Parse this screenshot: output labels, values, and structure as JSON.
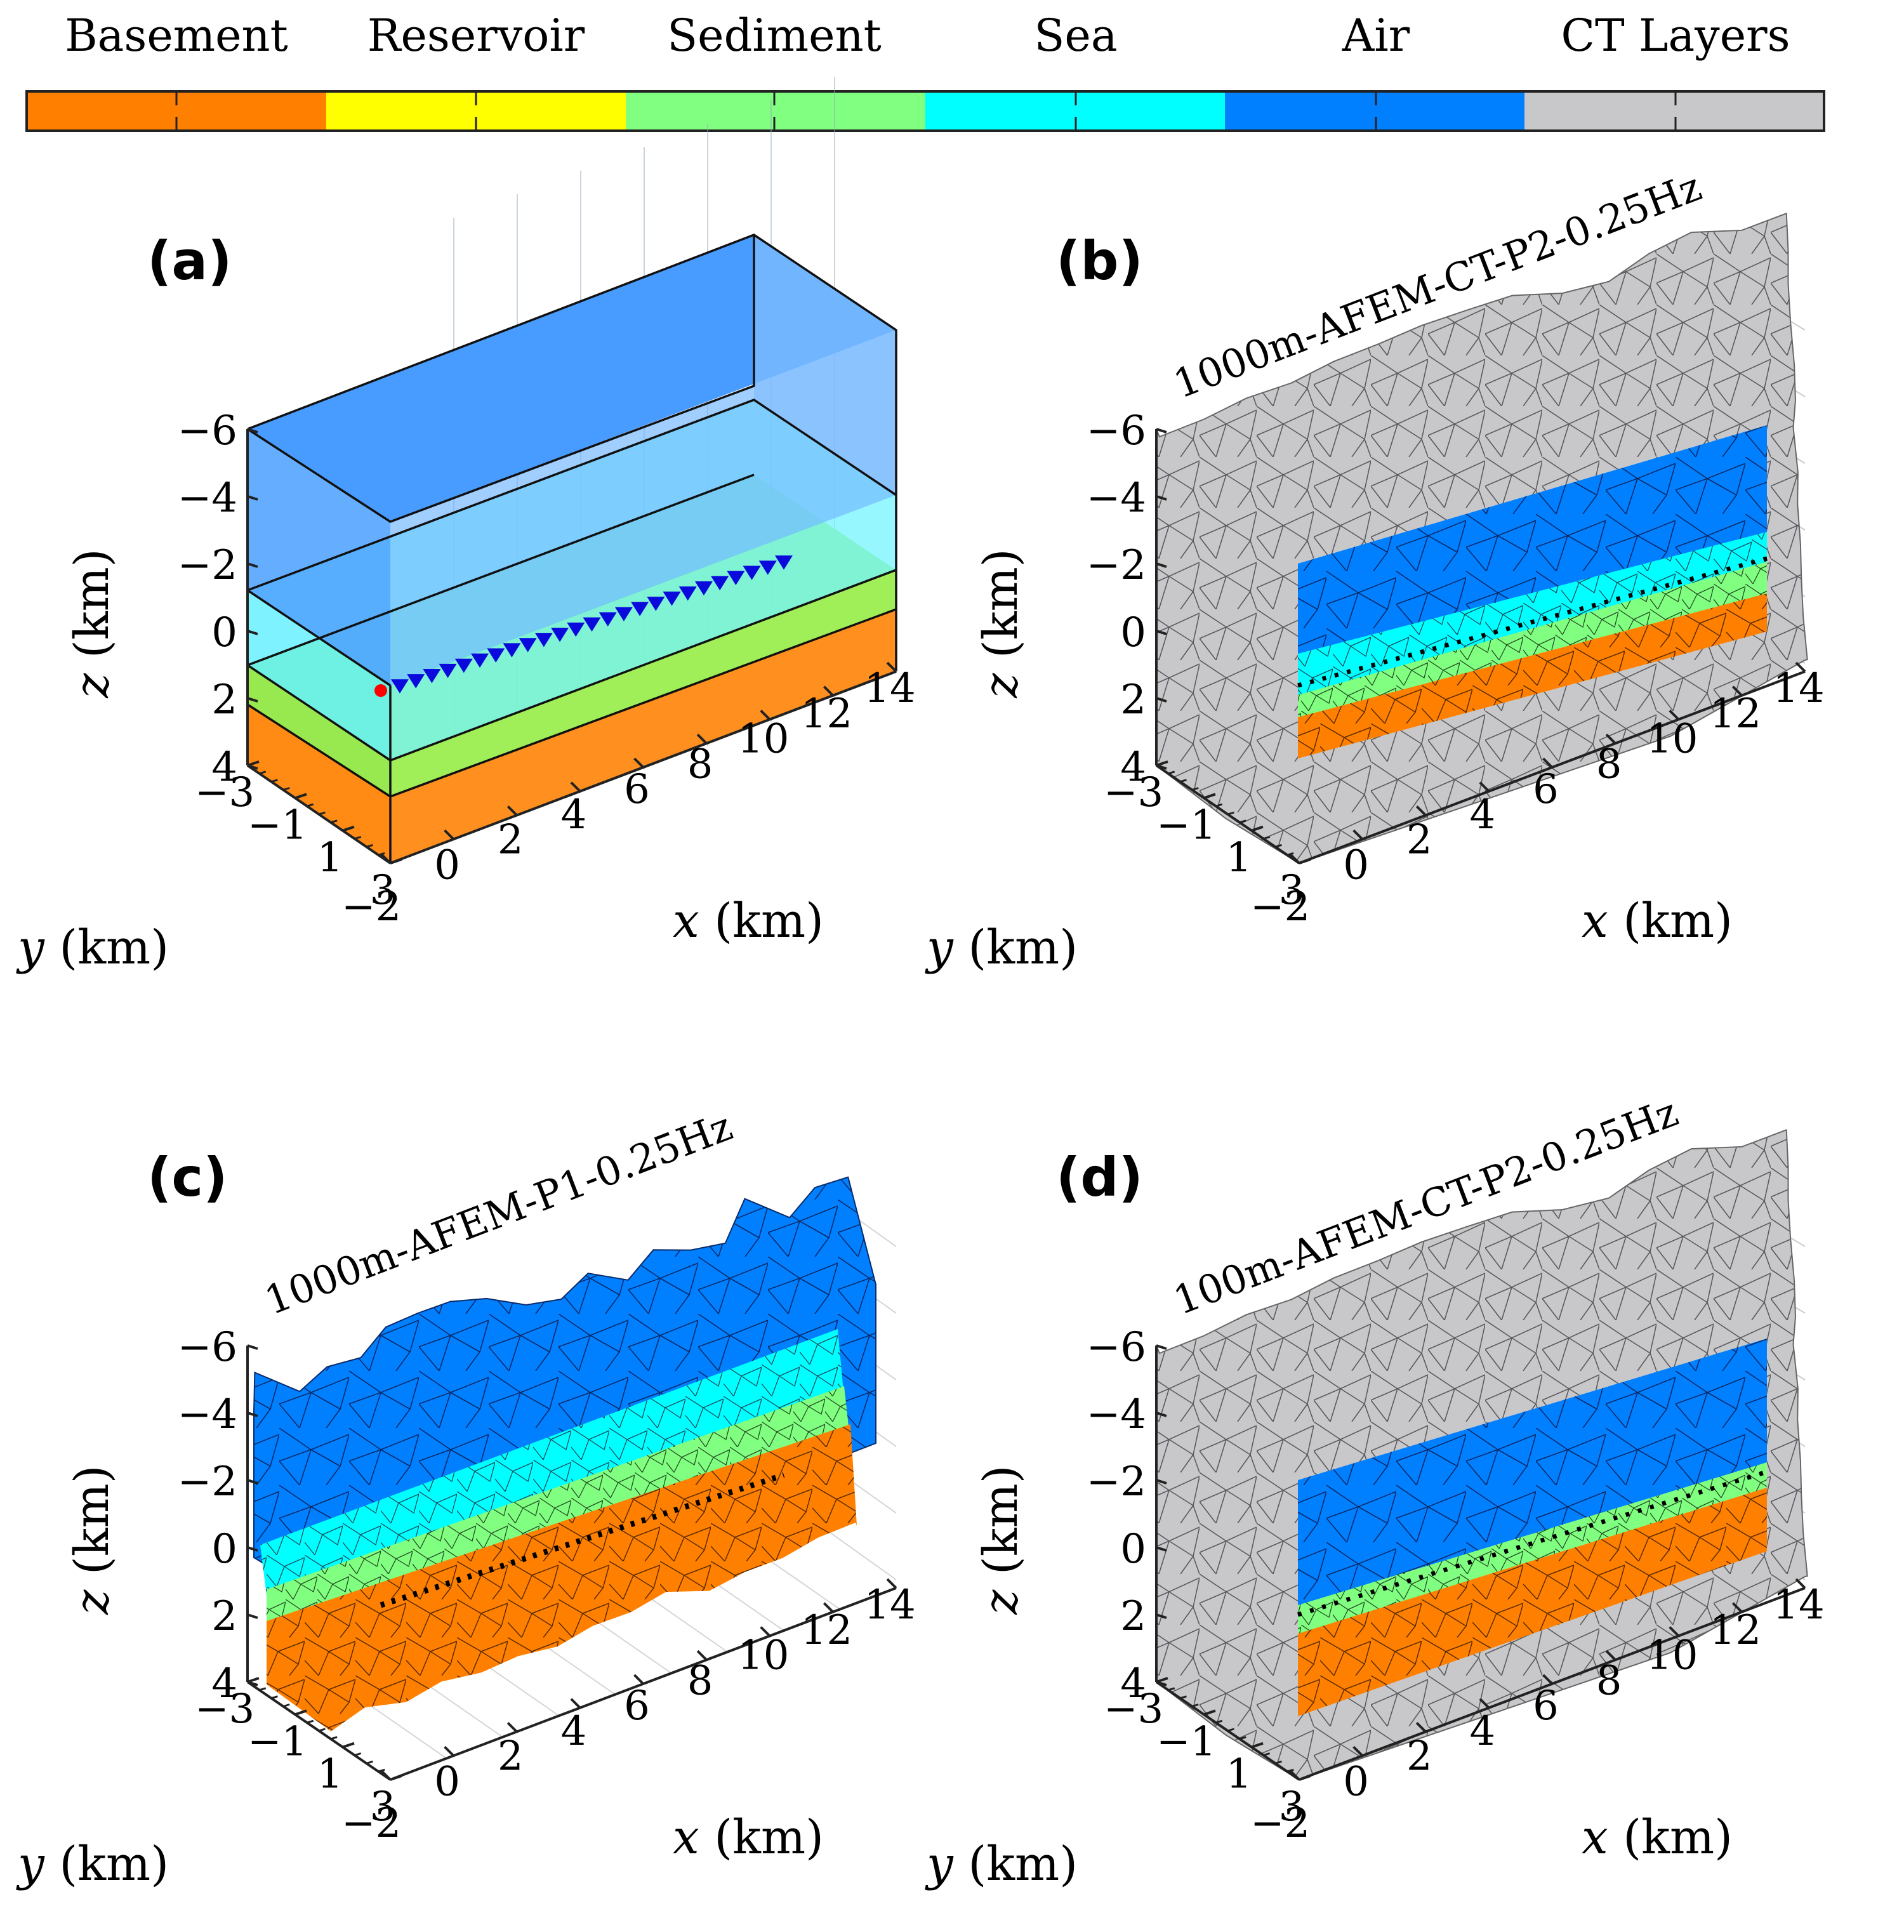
{
  "colorbar": {
    "labels": [
      "Basement",
      "Reservoir",
      "Sediment",
      "Sea",
      "Air",
      "CT Layers"
    ],
    "colors": [
      "#ff8000",
      "#ffff00",
      "#80ff80",
      "#00ffff",
      "#0080ff",
      "#c8c8ca"
    ]
  },
  "axes": {
    "z_ticks": [
      "−6",
      "−4",
      "−2",
      "0",
      "2",
      "4"
    ],
    "y_ticks": [
      "−3",
      "−1",
      "1",
      "3"
    ],
    "x_ticks": [
      "−2",
      "0",
      "2",
      "4",
      "6",
      "8",
      "10",
      "12",
      "14"
    ],
    "z_label_var": "z",
    "y_label_var": "y",
    "x_label_var": "x",
    "unit": "(km)"
  },
  "panels": [
    {
      "id": "a",
      "label": "(a)",
      "title": ""
    },
    {
      "id": "b",
      "label": "(b)",
      "title": "1000m-AFEM-CT-P2-0.25Hz"
    },
    {
      "id": "c",
      "label": "(c)",
      "title": "1000m-AFEM-P1-0.25Hz"
    },
    {
      "id": "d",
      "label": "(d)",
      "title": "100m-AFEM-CT-P2-0.25Hz"
    }
  ],
  "receivers_count": 25,
  "colors": {
    "receiver": "#0a0adc",
    "source": "#ff0000",
    "air": "#0080ff",
    "sea": "#00ffff",
    "sediment": "#80ff80",
    "basement": "#ff8000",
    "ct": "#c8c8ca"
  }
}
